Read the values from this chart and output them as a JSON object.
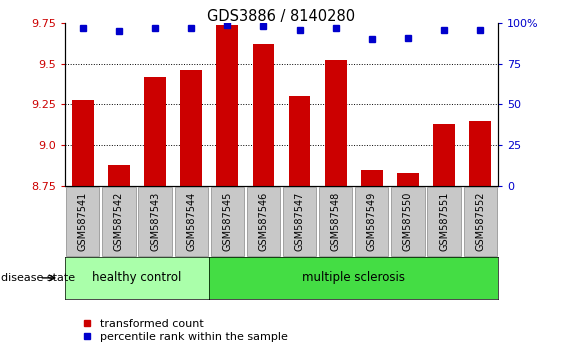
{
  "title": "GDS3886 / 8140280",
  "samples": [
    "GSM587541",
    "GSM587542",
    "GSM587543",
    "GSM587544",
    "GSM587545",
    "GSM587546",
    "GSM587547",
    "GSM587548",
    "GSM587549",
    "GSM587550",
    "GSM587551",
    "GSM587552"
  ],
  "bar_values": [
    9.28,
    8.88,
    9.42,
    9.46,
    9.74,
    9.62,
    9.3,
    9.52,
    8.85,
    8.83,
    9.13,
    9.15
  ],
  "percentile_values": [
    97,
    95,
    97,
    97,
    99,
    98,
    96,
    97,
    90,
    91,
    96,
    96
  ],
  "bar_color": "#cc0000",
  "dot_color": "#0000cc",
  "ylim_left": [
    8.75,
    9.75
  ],
  "ylim_right": [
    0,
    100
  ],
  "yticks_left": [
    8.75,
    9.0,
    9.25,
    9.5,
    9.75
  ],
  "yticks_right": [
    0,
    25,
    50,
    75,
    100
  ],
  "ytick_labels_right": [
    "0",
    "25",
    "50",
    "75",
    "100%"
  ],
  "grid_values": [
    9.0,
    9.25,
    9.5
  ],
  "healthy_count": 4,
  "group_colors": [
    "#aaffaa",
    "#44dd44"
  ],
  "disease_state_label": "disease state",
  "legend_bar_label": "transformed count",
  "legend_dot_label": "percentile rank within the sample",
  "tick_bg_color": "#c8c8c8",
  "tick_border_color": "#888888"
}
